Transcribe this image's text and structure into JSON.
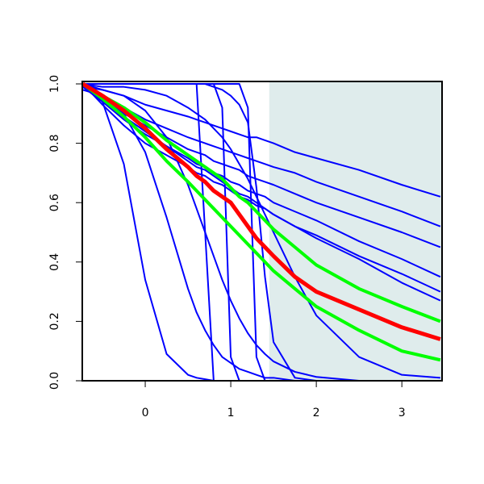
{
  "chart_data": {
    "type": "line",
    "x": [
      -0.73,
      -0.5,
      -0.25,
      0,
      0.25,
      0.5,
      0.6,
      0.7,
      0.8,
      0.9,
      1,
      1.1,
      1.2,
      1.3,
      1.4,
      1.5,
      1.75,
      2,
      2.5,
      3,
      3.45
    ],
    "xlim": [
      -0.736,
      3.47
    ],
    "ylim": [
      0,
      1
    ],
    "xticks": [
      0,
      1,
      2,
      3
    ],
    "yticks": [
      {
        "value": 0,
        "label": "0.0"
      },
      0.2,
      0.4,
      0.6,
      0.8,
      {
        "value": 1,
        "label": "1.0"
      }
    ],
    "shaded_region": {
      "xmin": 1.45,
      "color": "#dfecec"
    },
    "series": [
      {
        "color": "#0000ff",
        "width": 2,
        "values": [
          1,
          0.98,
          0.96,
          0.93,
          0.91,
          0.89,
          0.88,
          0.87,
          0.86,
          0.85,
          0.84,
          0.83,
          0.82,
          0.82,
          0.81,
          0.8,
          0.77,
          0.75,
          0.71,
          0.66,
          0.62
        ]
      },
      {
        "color": "#0000ff",
        "width": 2,
        "values": [
          1,
          0.96,
          0.92,
          0.88,
          0.85,
          0.82,
          0.81,
          0.8,
          0.79,
          0.78,
          0.77,
          0.76,
          0.75,
          0.74,
          0.73,
          0.72,
          0.7,
          0.67,
          0.62,
          0.57,
          0.52
        ]
      },
      {
        "color": "#0000ff",
        "width": 2,
        "values": [
          1,
          0.95,
          0.9,
          0.86,
          0.82,
          0.78,
          0.77,
          0.76,
          0.74,
          0.73,
          0.72,
          0.71,
          0.69,
          0.68,
          0.67,
          0.66,
          0.63,
          0.6,
          0.55,
          0.5,
          0.45
        ]
      },
      {
        "color": "#0000ff",
        "width": 2,
        "values": [
          1,
          0.94,
          0.88,
          0.83,
          0.79,
          0.75,
          0.73,
          0.72,
          0.7,
          0.69,
          0.67,
          0.66,
          0.64,
          0.63,
          0.62,
          0.6,
          0.57,
          0.54,
          0.47,
          0.41,
          0.35
        ]
      },
      {
        "color": "#0000ff",
        "width": 2,
        "values": [
          1,
          0.95,
          0.89,
          0.84,
          0.79,
          0.74,
          0.72,
          0.71,
          0.69,
          0.67,
          0.65,
          0.63,
          0.62,
          0.6,
          0.58,
          0.56,
          0.52,
          0.48,
          0.41,
          0.33,
          0.27
        ]
      },
      {
        "color": "#0000ff",
        "width": 2,
        "values": [
          1,
          0.93,
          0.86,
          0.8,
          0.76,
          0.72,
          0.7,
          0.69,
          0.67,
          0.66,
          0.64,
          0.62,
          0.61,
          0.59,
          0.58,
          0.56,
          0.52,
          0.49,
          0.42,
          0.36,
          0.3
        ]
      },
      {
        "color": "#0000ff",
        "width": 2,
        "values": [
          0.99,
          0.94,
          0.73,
          0.34,
          0.09,
          0.02,
          0.01,
          0.005,
          0,
          0,
          0,
          0,
          0,
          0,
          0,
          0,
          0,
          0,
          0,
          0,
          0
        ]
      },
      {
        "color": "#0000ff",
        "width": 2,
        "values": [
          0.98,
          0.96,
          0.9,
          0.77,
          0.55,
          0.31,
          0.23,
          0.17,
          0.12,
          0.08,
          0.06,
          0.04,
          0.03,
          0.02,
          0.01,
          0.01,
          0,
          0,
          0,
          0,
          0
        ]
      },
      {
        "color": "#0000ff",
        "width": 2,
        "values": [
          0.99,
          0.98,
          0.96,
          0.91,
          0.82,
          0.66,
          0.58,
          0.5,
          0.42,
          0.34,
          0.27,
          0.21,
          0.16,
          0.12,
          0.09,
          0.065,
          0.03,
          0.013,
          0,
          0,
          0
        ]
      },
      {
        "color": "#0000ff",
        "width": 2,
        "values": [
          1,
          1,
          1,
          1,
          1,
          1,
          1,
          0.5,
          0,
          0,
          0,
          0,
          0,
          0,
          0,
          0,
          0,
          0,
          0,
          0,
          0
        ]
      },
      {
        "color": "#0000ff",
        "width": 2,
        "values": [
          1,
          1,
          1,
          1,
          1,
          1,
          1,
          1,
          1,
          0.92,
          0.08,
          0,
          0,
          0,
          0,
          0,
          0,
          0,
          0,
          0,
          0
        ]
      },
      {
        "color": "#0000ff",
        "width": 2,
        "values": [
          1,
          1,
          1,
          1,
          1,
          1,
          1,
          1,
          1,
          1,
          1,
          1,
          0.92,
          0.08,
          0,
          0,
          0,
          0,
          0,
          0,
          0
        ]
      },
      {
        "color": "#0000ff",
        "width": 2,
        "values": [
          1,
          1,
          1,
          1,
          1,
          1,
          1,
          1,
          0.99,
          0.98,
          0.96,
          0.93,
          0.87,
          0.65,
          0.35,
          0.13,
          0.01,
          0,
          0,
          0,
          0
        ]
      },
      {
        "color": "#0000ff",
        "width": 2,
        "values": [
          1,
          0.99,
          0.99,
          0.98,
          0.96,
          0.92,
          0.9,
          0.88,
          0.85,
          0.82,
          0.78,
          0.73,
          0.68,
          0.62,
          0.56,
          0.5,
          0.35,
          0.22,
          0.08,
          0.02,
          0.01
        ]
      },
      {
        "color": "#00ff00",
        "width": 4,
        "values": [
          1,
          0.96,
          0.92,
          0.87,
          0.81,
          0.76,
          0.74,
          0.72,
          0.7,
          0.68,
          0.65,
          0.62,
          0.6,
          0.57,
          0.54,
          0.51,
          0.45,
          0.39,
          0.31,
          0.25,
          0.2
        ]
      },
      {
        "color": "#00ff00",
        "width": 4,
        "values": [
          1,
          0.95,
          0.89,
          0.82,
          0.74,
          0.67,
          0.64,
          0.61,
          0.58,
          0.55,
          0.52,
          0.49,
          0.46,
          0.43,
          0.4,
          0.37,
          0.31,
          0.25,
          0.17,
          0.1,
          0.07
        ]
      },
      {
        "color": "#ff0000",
        "width": 5,
        "values": [
          1,
          0.96,
          0.91,
          0.85,
          0.78,
          0.72,
          0.69,
          0.67,
          0.64,
          0.62,
          0.6,
          0.56,
          0.52,
          0.48,
          0.45,
          0.42,
          0.35,
          0.3,
          0.24,
          0.18,
          0.14
        ]
      }
    ]
  }
}
